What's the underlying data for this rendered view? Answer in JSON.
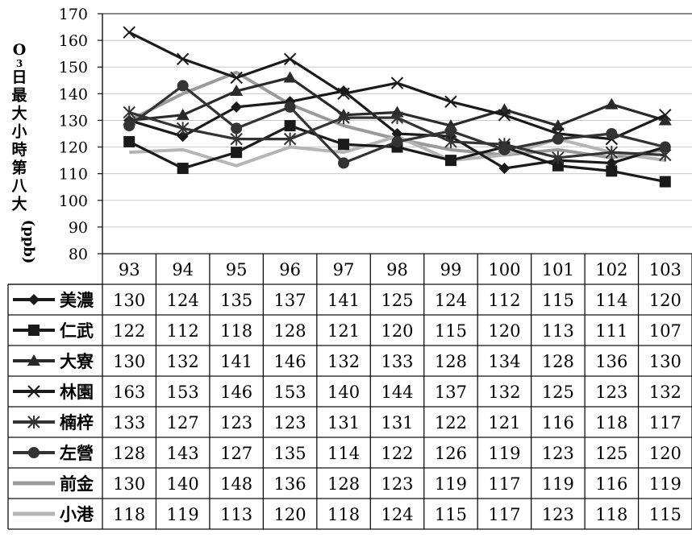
{
  "chart_data": {
    "type": "line",
    "ylabel": "O₃日最大小時第八大(ppb)",
    "ylabel_parts": [
      "O",
      "3",
      "日",
      "最",
      "大",
      "小",
      "時",
      "第",
      "八",
      "大",
      "(ppb)"
    ],
    "ylim": [
      80,
      170
    ],
    "yticks": [
      80,
      90,
      100,
      110,
      120,
      130,
      140,
      150,
      160,
      170
    ],
    "categories": [
      "93",
      "94",
      "95",
      "96",
      "97",
      "98",
      "99",
      "100",
      "101",
      "102",
      "103"
    ],
    "legend": "data-table-left",
    "series": [
      {
        "name": "美濃",
        "marker": "diamond",
        "color": "#1a1a1a",
        "values": [
          130,
          124,
          135,
          137,
          141,
          125,
          124,
          112,
          115,
          114,
          120
        ]
      },
      {
        "name": "仁武",
        "marker": "square",
        "color": "#1a1a1a",
        "values": [
          122,
          112,
          118,
          128,
          121,
          120,
          115,
          120,
          113,
          111,
          107
        ]
      },
      {
        "name": "大寮",
        "marker": "triangle",
        "color": "#2a2a2a",
        "values": [
          130,
          132,
          141,
          146,
          132,
          133,
          128,
          134,
          128,
          136,
          130
        ]
      },
      {
        "name": "林園",
        "marker": "x",
        "color": "#1a1a1a",
        "values": [
          163,
          153,
          146,
          153,
          140,
          144,
          137,
          132,
          125,
          123,
          132
        ]
      },
      {
        "name": "楠梓",
        "marker": "star",
        "color": "#333333",
        "values": [
          133,
          127,
          123,
          123,
          131,
          131,
          122,
          121,
          116,
          118,
          117
        ]
      },
      {
        "name": "左營",
        "marker": "circle",
        "color": "#333333",
        "values": [
          128,
          143,
          127,
          135,
          114,
          122,
          126,
          119,
          123,
          125,
          120
        ]
      },
      {
        "name": "前金",
        "marker": "none",
        "color": "#9a9a9a",
        "values": [
          130,
          140,
          148,
          136,
          128,
          123,
          119,
          117,
          119,
          116,
          119
        ]
      },
      {
        "name": "小港",
        "marker": "none",
        "color": "#b5b5b5",
        "values": [
          118,
          119,
          113,
          120,
          118,
          124,
          115,
          117,
          123,
          118,
          115
        ]
      }
    ]
  }
}
